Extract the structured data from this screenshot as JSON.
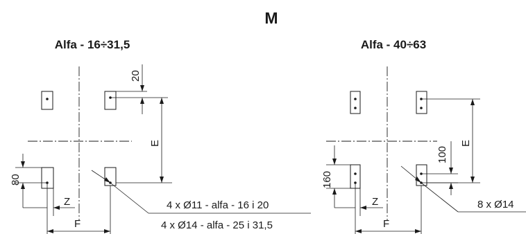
{
  "title": "M",
  "left": {
    "heading": "Alfa - 16÷31,5",
    "dim_top": "20",
    "dim_e": "E",
    "dim_80": "80",
    "dim_z": "Z",
    "dim_f": "F",
    "note_1": "4 x Ø11 - alfa - 16 i 20",
    "note_2": "4 x Ø14 - alfa - 25 i 31,5"
  },
  "right": {
    "heading": "Alfa - 40÷63",
    "dim_100": "100",
    "dim_e": "E",
    "dim_160": "160",
    "dim_z": "Z",
    "dim_f": "F",
    "note": "8 x Ø14"
  }
}
